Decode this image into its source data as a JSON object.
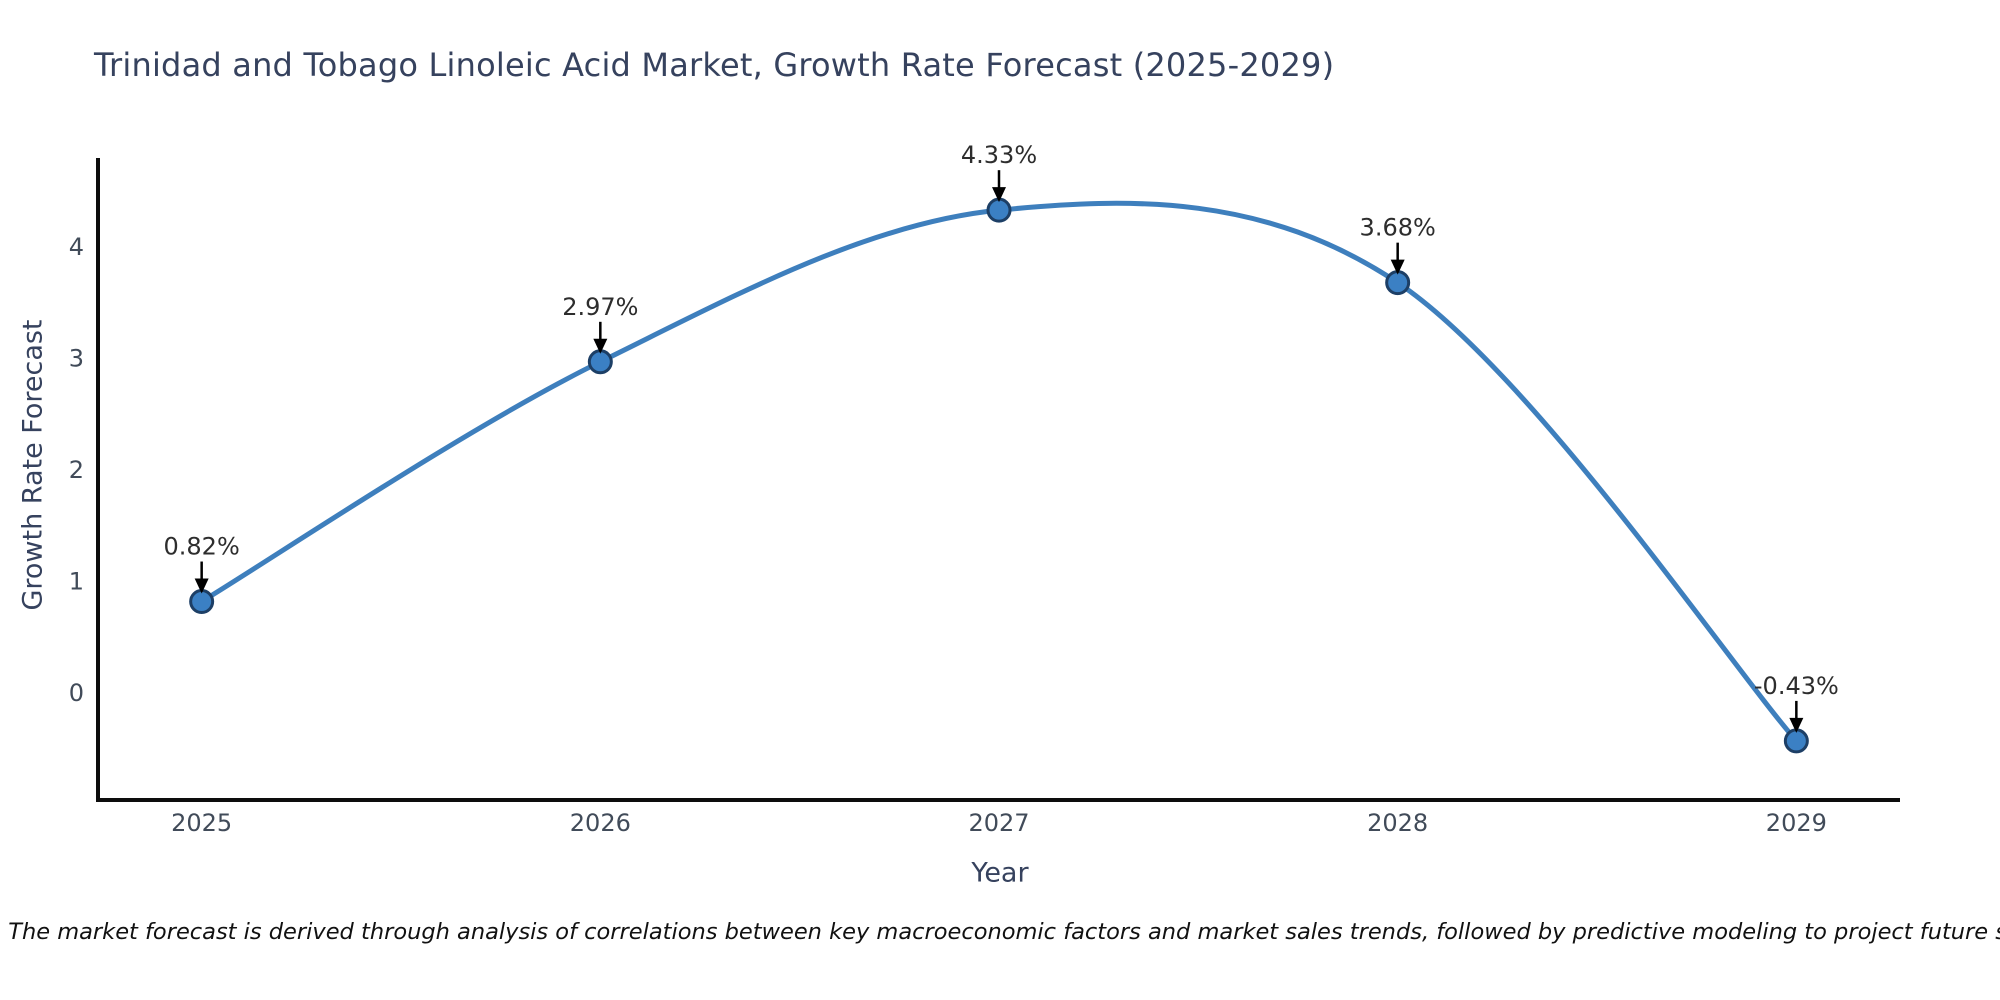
{
  "title": "Trinidad and Tobago Linoleic Acid Market, Growth Rate Forecast (2025-2029)",
  "note": "Note: The market forecast is derived through analysis of correlations between key macroeconomic factors and market sales trends, followed by predictive modeling to project future sales.",
  "chart_data": {
    "type": "line",
    "title": "Trinidad and Tobago Linoleic Acid Market, Growth Rate Forecast (2025-2029)",
    "xlabel": "Year",
    "ylabel": "Growth Rate Forecast",
    "x": [
      2025,
      2026,
      2027,
      2028,
      2029
    ],
    "values": [
      0.82,
      2.97,
      4.33,
      3.68,
      -0.43
    ],
    "point_labels": [
      "0.82%",
      "2.97%",
      "4.33%",
      "3.68%",
      "-0.43%"
    ],
    "x_tick_labels": [
      "2025",
      "2026",
      "2027",
      "2028",
      "2029"
    ],
    "y_ticks": [
      0,
      1,
      2,
      3,
      4
    ],
    "xlim": [
      2024.74,
      2029.26
    ],
    "ylim": [
      -0.96,
      4.78
    ],
    "grid": false,
    "legend_position": "none",
    "line_shape": "spline",
    "annotations_have_arrows": true,
    "colors": {
      "line": "#3e7fbd",
      "marker_fill": "#3b80c4",
      "marker_edge": "#1d3f66",
      "axis": "#0d0d0d",
      "title_text": "#36425e",
      "tick_text": "#414b59",
      "annotation_text": "#2d2d2d",
      "arrow": "#000000",
      "background": "#ffffff"
    }
  }
}
